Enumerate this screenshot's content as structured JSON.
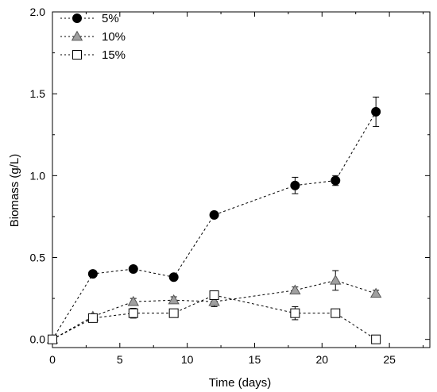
{
  "chart_data": {
    "type": "line",
    "title": "",
    "xlabel": "Time (days)",
    "ylabel": "Biomass (g/L)",
    "xlim": [
      0,
      28
    ],
    "ylim": [
      -0.05,
      2.0
    ],
    "xticks": [
      0,
      5,
      10,
      15,
      20,
      25
    ],
    "xtick_labels": [
      "0",
      "5",
      "10",
      "15",
      "20",
      "25"
    ],
    "yticks": [
      0.0,
      0.5,
      1.0,
      1.5,
      2.0
    ],
    "ytick_labels": [
      "0.0",
      "0.5",
      "1.0",
      "1.5",
      "2.0"
    ],
    "grid": false,
    "legend_position": "top-left",
    "line_style": "dotted",
    "series": [
      {
        "name": "5%",
        "marker": "circle",
        "marker_fill": "#000000",
        "x": [
          0,
          3,
          6,
          9,
          12,
          18,
          21,
          24
        ],
        "y": [
          0.0,
          0.4,
          0.43,
          0.38,
          0.76,
          0.94,
          0.97,
          1.39
        ],
        "error": [
          0.0,
          0.01,
          0.01,
          0.01,
          0.01,
          0.05,
          0.03,
          0.09
        ]
      },
      {
        "name": "10%",
        "marker": "triangle",
        "marker_fill": "#a0a0a0",
        "x": [
          0,
          3,
          6,
          9,
          12,
          18,
          21,
          24
        ],
        "y": [
          0.0,
          0.14,
          0.23,
          0.24,
          0.23,
          0.3,
          0.36,
          0.28
        ],
        "error": [
          0.0,
          0.01,
          0.02,
          0.02,
          0.03,
          0.02,
          0.06,
          0.02
        ]
      },
      {
        "name": "15%",
        "marker": "square",
        "marker_fill": "#ffffff",
        "x": [
          0,
          3,
          6,
          9,
          12,
          18,
          21,
          24
        ],
        "y": [
          0.0,
          0.13,
          0.16,
          0.16,
          0.27,
          0.16,
          0.16,
          0.0
        ],
        "error": [
          0.0,
          0.01,
          0.03,
          0.02,
          0.02,
          0.04,
          0.02,
          0.01
        ]
      }
    ]
  }
}
